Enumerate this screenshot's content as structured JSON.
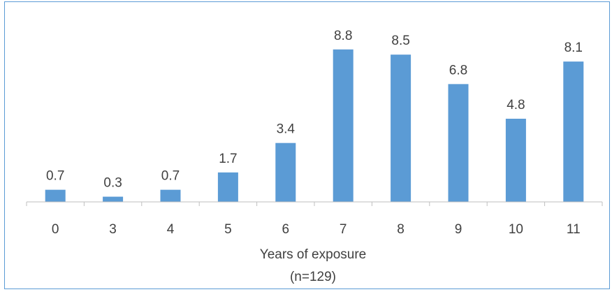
{
  "chart_data": {
    "type": "bar",
    "categories": [
      "0",
      "3",
      "4",
      "5",
      "6",
      "7",
      "8",
      "9",
      "10",
      "11"
    ],
    "values": [
      0.7,
      0.3,
      0.7,
      1.7,
      3.4,
      8.8,
      8.5,
      6.8,
      4.8,
      8.1
    ],
    "data_labels": [
      "0.7",
      "0.3",
      "0.7",
      "1.7",
      "3.4",
      "8.8",
      "8.5",
      "6.8",
      "4.8",
      "8.1"
    ],
    "xlabel_line1": "Years of exposure",
    "xlabel_line2": "(n=129)",
    "ylim": [
      0,
      10
    ],
    "grid": false,
    "legend": "none",
    "bar_color": "#5b9bd5",
    "axis_color": "#bfbfbf",
    "text_color": "#404040"
  }
}
